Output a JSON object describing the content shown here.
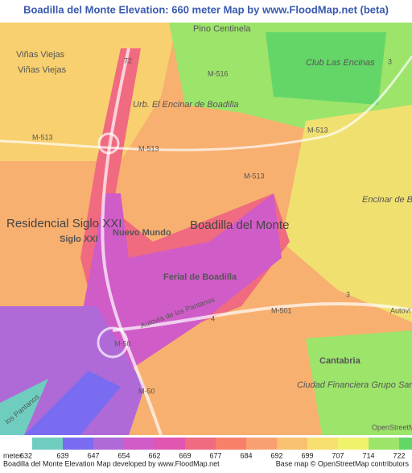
{
  "header": {
    "title": "Boadilla del Monte Elevation: 660 meter Map by www.FloodMap.net (beta)"
  },
  "map": {
    "labels": [
      "Pino Centinela",
      "Viñas Viejas",
      "Viñas Viejas",
      "Club Las Encinas",
      "M-516",
      "72",
      "Urb. El Encinar de Boadilla",
      "M-513",
      "M-513",
      "M-513",
      "M-513",
      "Encinar de Boad",
      "Residencial Siglo XXI",
      "Siglo XXI",
      "Nuevo Mundo",
      "Boadilla del Monte",
      "Ferial de Boadilla",
      "M-501",
      "Autovía de los Pantanos",
      "4",
      "3",
      "3",
      "Autovi",
      "M-50",
      "M-50",
      "Cantabria",
      "Ciudad Financiera Grupo Santander",
      "los Pantanos",
      "OpenStreetMap"
    ]
  },
  "legend": {
    "unit": "meter",
    "values": [
      632,
      639,
      647,
      654,
      662,
      669,
      677,
      684,
      692,
      699,
      707,
      714,
      722
    ],
    "colors": [
      "#6fcdc0",
      "#7a6cf0",
      "#b06ad8",
      "#d05cc8",
      "#e056b0",
      "#f06a80",
      "#f8806a",
      "#f8a070",
      "#f8c070",
      "#f8e070",
      "#f0f26c",
      "#9ce46a",
      "#64d668"
    ]
  },
  "footer": {
    "credit": "Boadilla del Monte Elevation Map developed by www.FloodMap.net",
    "attribution": "Base map © OpenStreetMap contributors"
  }
}
